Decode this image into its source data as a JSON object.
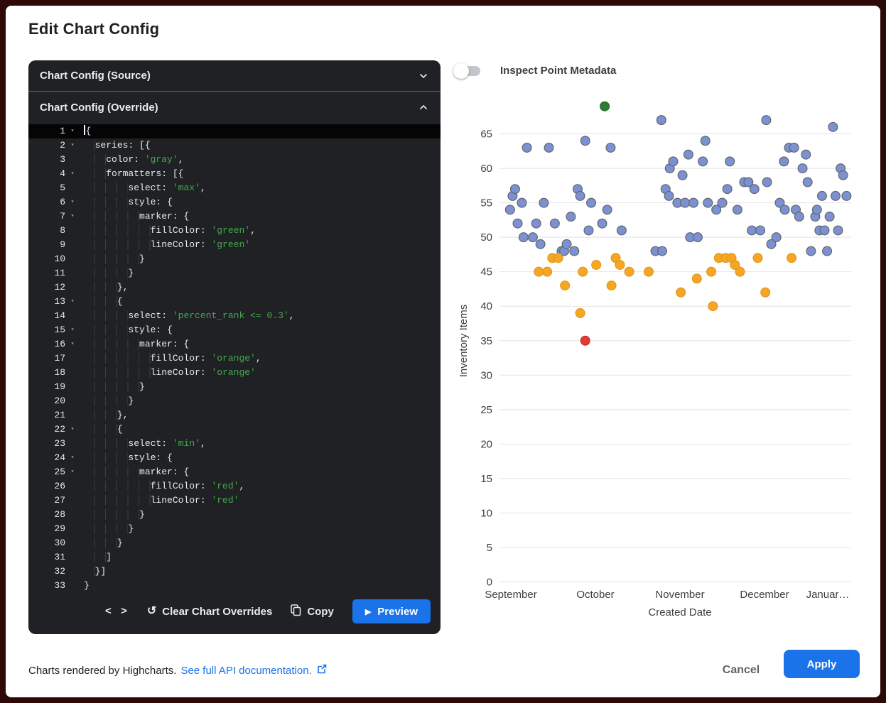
{
  "dialog": {
    "title": "Edit Chart Config"
  },
  "editor": {
    "source_header": "Chart Config (Source)",
    "override_header": "Chart Config (Override)",
    "active_line": 1,
    "fold_lines": [
      1,
      2,
      4,
      6,
      7,
      13,
      15,
      16,
      22,
      24,
      25
    ],
    "lines": [
      "{",
      "  series: [{",
      "    color: 'gray',",
      "    formatters: [{",
      "        select: 'max',",
      "        style: {",
      "          marker: {",
      "            fillColor: 'green',",
      "            lineColor: 'green'",
      "          }",
      "        }",
      "      },",
      "      {",
      "        select: 'percent_rank <= 0.3',",
      "        style: {",
      "          marker: {",
      "            fillColor: 'orange',",
      "            lineColor: 'orange'",
      "          }",
      "        }",
      "      },",
      "      {",
      "        select: 'min',",
      "        style: {",
      "          marker: {",
      "            fillColor: 'red',",
      "            lineColor: 'red'",
      "          }",
      "        }",
      "      }",
      "    ]",
      "  }]",
      "}"
    ],
    "footer": {
      "code_icon": "< >",
      "clear_label": "Clear Chart Overrides",
      "copy_label": "Copy",
      "preview_label": "Preview"
    }
  },
  "toggle": {
    "label": "Inspect Point Metadata",
    "state": "off"
  },
  "chart_data": {
    "type": "scatter",
    "title": "",
    "xlabel": "Created Date",
    "ylabel": "Inventory Items",
    "x_tick_labels": [
      "September",
      "October",
      "November",
      "December",
      "Januar…"
    ],
    "x_unit": "fractional months after September tick (0=September, 1=October, 2=November, 3=December, 4=January)",
    "y_ticks": [
      0,
      5,
      10,
      15,
      20,
      25,
      30,
      35,
      40,
      45,
      50,
      55,
      60,
      65
    ],
    "ylim": [
      0,
      70
    ],
    "grid": "horizontal gridlines only",
    "legend": "none",
    "series": [
      {
        "name": "base (config color 'gray', rendered blue-gray)",
        "color": "#7b91d2",
        "line_color": "#63666c",
        "points": [
          [
            -0.01,
            54
          ],
          [
            0.02,
            56
          ],
          [
            0.05,
            57
          ],
          [
            0.08,
            52
          ],
          [
            0.13,
            55
          ],
          [
            0.15,
            50
          ],
          [
            0.19,
            63
          ],
          [
            0.26,
            50
          ],
          [
            0.3,
            52
          ],
          [
            0.35,
            49
          ],
          [
            0.39,
            55
          ],
          [
            0.45,
            63
          ],
          [
            0.52,
            52
          ],
          [
            0.6,
            48
          ],
          [
            0.63,
            48
          ],
          [
            0.66,
            49
          ],
          [
            0.71,
            53
          ],
          [
            0.75,
            48
          ],
          [
            0.79,
            57
          ],
          [
            0.82,
            56
          ],
          [
            0.88,
            64
          ],
          [
            0.92,
            51
          ],
          [
            0.95,
            55
          ],
          [
            1.08,
            52
          ],
          [
            1.14,
            54
          ],
          [
            1.18,
            63
          ],
          [
            1.31,
            51
          ],
          [
            1.71,
            48
          ],
          [
            1.78,
            67
          ],
          [
            1.79,
            48
          ],
          [
            1.83,
            57
          ],
          [
            1.87,
            56
          ],
          [
            1.88,
            60
          ],
          [
            1.92,
            61
          ],
          [
            1.97,
            55
          ],
          [
            2.03,
            59
          ],
          [
            2.06,
            55
          ],
          [
            2.1,
            62
          ],
          [
            2.12,
            50
          ],
          [
            2.16,
            55
          ],
          [
            2.21,
            50
          ],
          [
            2.27,
            61
          ],
          [
            2.3,
            64
          ],
          [
            2.33,
            55
          ],
          [
            2.43,
            54
          ],
          [
            2.5,
            55
          ],
          [
            2.56,
            57
          ],
          [
            2.59,
            61
          ],
          [
            2.68,
            54
          ],
          [
            2.76,
            58
          ],
          [
            2.81,
            58
          ],
          [
            2.85,
            51
          ],
          [
            2.88,
            57
          ],
          [
            2.95,
            51
          ],
          [
            3.02,
            67
          ],
          [
            3.03,
            58
          ],
          [
            3.08,
            49
          ],
          [
            3.14,
            50
          ],
          [
            3.18,
            55
          ],
          [
            3.23,
            61
          ],
          [
            3.24,
            54
          ],
          [
            3.29,
            63
          ],
          [
            3.35,
            63
          ],
          [
            3.37,
            54
          ],
          [
            3.41,
            53
          ],
          [
            3.45,
            60
          ],
          [
            3.49,
            62
          ],
          [
            3.51,
            58
          ],
          [
            3.55,
            48
          ],
          [
            3.6,
            53
          ],
          [
            3.62,
            54
          ],
          [
            3.65,
            51
          ],
          [
            3.68,
            56
          ],
          [
            3.71,
            51
          ],
          [
            3.74,
            48
          ],
          [
            3.77,
            53
          ],
          [
            3.81,
            66
          ],
          [
            3.84,
            56
          ],
          [
            3.87,
            51
          ],
          [
            3.9,
            60
          ],
          [
            3.93,
            59
          ],
          [
            3.97,
            56
          ]
        ]
      },
      {
        "name": "percent_rank <= 0.3 (orange)",
        "color": "#f6a623",
        "line_color": "#e0981c",
        "points": [
          [
            0.33,
            45
          ],
          [
            0.43,
            45
          ],
          [
            0.49,
            47
          ],
          [
            0.56,
            47
          ],
          [
            0.64,
            43
          ],
          [
            0.82,
            39
          ],
          [
            0.85,
            45
          ],
          [
            1.01,
            46
          ],
          [
            1.19,
            43
          ],
          [
            1.24,
            47
          ],
          [
            1.29,
            46
          ],
          [
            1.4,
            45
          ],
          [
            1.63,
            45
          ],
          [
            2.01,
            42
          ],
          [
            2.2,
            44
          ],
          [
            2.37,
            45
          ],
          [
            2.39,
            40
          ],
          [
            2.46,
            47
          ],
          [
            2.54,
            47
          ],
          [
            2.61,
            47
          ],
          [
            2.65,
            46
          ],
          [
            2.71,
            45
          ],
          [
            2.92,
            47
          ],
          [
            3.01,
            42
          ],
          [
            3.32,
            47
          ]
        ]
      },
      {
        "name": "max (green)",
        "color": "#2e7d32",
        "line_color": "#256628",
        "points": [
          [
            1.11,
            69
          ]
        ]
      },
      {
        "name": "min (red)",
        "color": "#e23d32",
        "line_color": "#c3322a",
        "points": [
          [
            0.88,
            35
          ]
        ]
      }
    ]
  },
  "footer": {
    "credit": "Charts rendered by Highcharts.",
    "link_label": "See full API documentation.",
    "cancel_label": "Cancel",
    "apply_label": "Apply"
  },
  "colors": {
    "frame": "#2d0907",
    "editor_bg": "#202124",
    "editor_text": "#e8eaed",
    "code_string": "#43a94d",
    "accent_blue": "#1a73e8",
    "gridline": "#e4e4e4",
    "axis_text": "#3c4043"
  }
}
